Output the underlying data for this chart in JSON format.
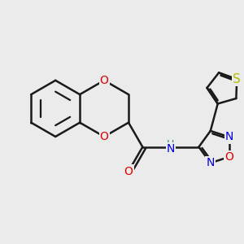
{
  "bg_color": "#ebebeb",
  "bond_color": "#1a1a1a",
  "bond_width": 1.8,
  "atom_colors": {
    "O": "#e00000",
    "N": "#0000e0",
    "S": "#b8b800",
    "H": "#3a8080",
    "C": "#1a1a1a"
  },
  "font_size": 10,
  "font_size_s": 11,
  "fig_size": [
    3.0,
    3.0
  ],
  "dpi": 100
}
